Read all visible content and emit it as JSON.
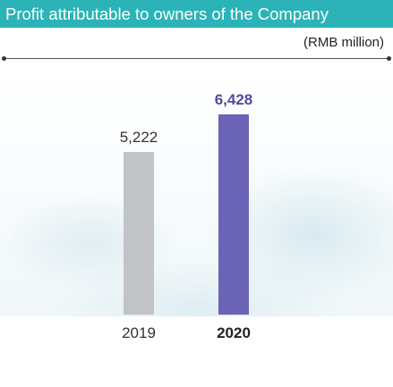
{
  "title_bar": {
    "title": "Profit attributable to owners of the Company",
    "background": "#2bb3b7"
  },
  "unit_label": "(RMB million)",
  "chart_data": {
    "type": "bar",
    "title": "Profit attributable to owners of the Company",
    "unit": "(RMB million)",
    "categories": [
      "2019",
      "2020"
    ],
    "values": [
      5222,
      6428
    ],
    "value_labels": [
      "5,222",
      "6,428"
    ],
    "bar_colors": [
      "#c2c3c6",
      "#6b63b5"
    ],
    "label_colors": [
      "#333333",
      "#514a9e"
    ],
    "highlighted_category": "2020",
    "ylim": [
      0,
      6600
    ],
    "grid": false,
    "legend": "none"
  }
}
